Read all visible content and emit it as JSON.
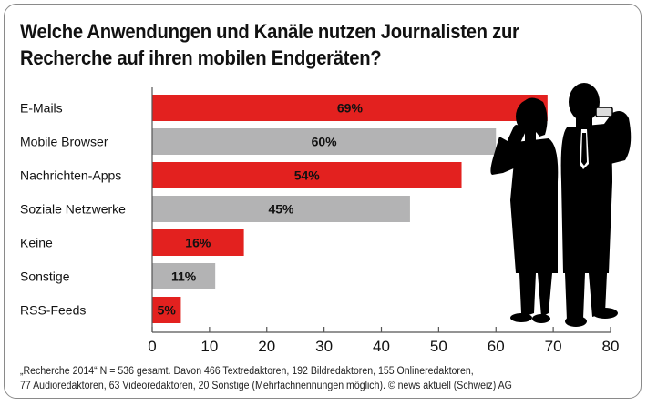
{
  "title_line1": "Welche Anwendungen und Kanäle nutzen Journalisten zur",
  "title_line2": "Recherche auf ihren mobilen Endgeräten?",
  "footnote_line1": "„Recherche 2014“ N = 536 gesamt. Davon 466 Textredaktoren, 192 Bildredaktoren, 155 Onlineredaktoren,",
  "footnote_line2": "77 Audioredaktoren, 63 Videoredaktoren, 20 Sonstige (Mehrfachnennungen möglich). © news aktuell (Schweiz) AG",
  "illustration": "silhouettes-of-businesswoman-and-businessman-on-phones",
  "colors": {
    "red": "#e3211f",
    "gray": "#b3b3b4",
    "axis": "#555555",
    "border": "#8a8a8a"
  },
  "chart_data": {
    "type": "bar",
    "orientation": "horizontal",
    "title": "Welche Anwendungen und Kanäle nutzen Journalisten zur Recherche auf ihren mobilen Endgeräten?",
    "xlabel": "",
    "ylabel": "",
    "categories": [
      "E-Mails",
      "Mobile Browser",
      "Nachrichten-Apps",
      "Soziale Netzwerke",
      "Keine",
      "Sonstige",
      "RSS-Feeds"
    ],
    "values": [
      69,
      60,
      54,
      45,
      16,
      11,
      5
    ],
    "value_labels": [
      "69%",
      "60%",
      "54%",
      "45%",
      "16%",
      "11%",
      "5%"
    ],
    "bar_colors": [
      "red",
      "gray",
      "red",
      "gray",
      "red",
      "gray",
      "red"
    ],
    "xlim": [
      0,
      80
    ],
    "xticks": [
      0,
      10,
      20,
      30,
      40,
      50,
      60,
      70,
      80
    ],
    "grid": false,
    "legend": "none"
  }
}
